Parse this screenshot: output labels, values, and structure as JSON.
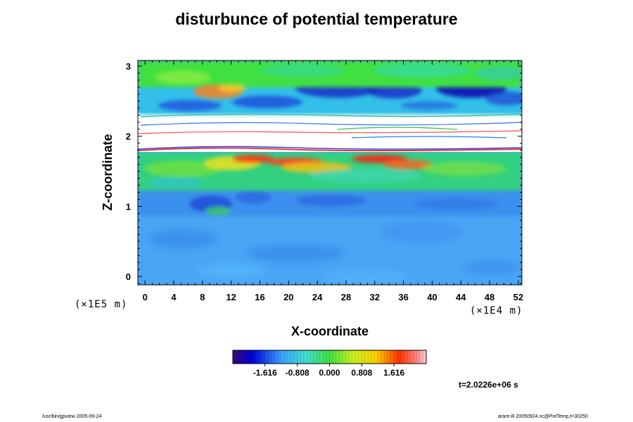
{
  "chart_data": {
    "type": "heatmap",
    "title": "disturbunce of potential temperature",
    "xlabel": "X-coordinate",
    "ylabel": "Z-coordinate",
    "x_unit": "(×1E4 m)",
    "z_unit": "(×1E5 m)",
    "xlim": [
      -1,
      52.5
    ],
    "ylim": [
      -0.12,
      3.08
    ],
    "x_ticks": [
      "0",
      "4",
      "8",
      "12",
      "16",
      "20",
      "24",
      "28",
      "32",
      "36",
      "40",
      "44",
      "48",
      "52"
    ],
    "y_ticks": [
      "0",
      "1",
      "2",
      "3"
    ],
    "colorbar": {
      "range": [
        -2.424,
        2.424
      ],
      "tick_labels": [
        "-1.616",
        "-0.808",
        "0.000",
        "0.808",
        "1.616"
      ],
      "tick_values": [
        -1.616,
        -0.808,
        0.0,
        0.808,
        1.616
      ]
    },
    "field_regions": [
      {
        "z_range": [
          -0.1,
          0.9
        ],
        "approx_value": -0.55,
        "description": "lower layer, light blue"
      },
      {
        "z_range": [
          0.9,
          1.25
        ],
        "approx_value": -0.35,
        "description": "transition"
      },
      {
        "z_range": [
          1.25,
          1.8
        ],
        "approx_value": 0.2,
        "description": "green to yellow/red band"
      },
      {
        "z_range": [
          1.8,
          2.4
        ],
        "approx_value": null,
        "description": "white, out of range"
      },
      {
        "z_range": [
          2.4,
          2.75
        ],
        "approx_value": -0.6,
        "description": "blue streaks"
      },
      {
        "z_range": [
          2.75,
          3.08
        ],
        "approx_value": 0.3,
        "description": "upper green"
      }
    ]
  },
  "annotations": {
    "time": "t=2.0226e+06 s",
    "footer_left": "/usr/bin/gpview 2005-09-24",
    "footer_right": "arare-ill 20050924.nc@PotTemp,t=30250"
  }
}
